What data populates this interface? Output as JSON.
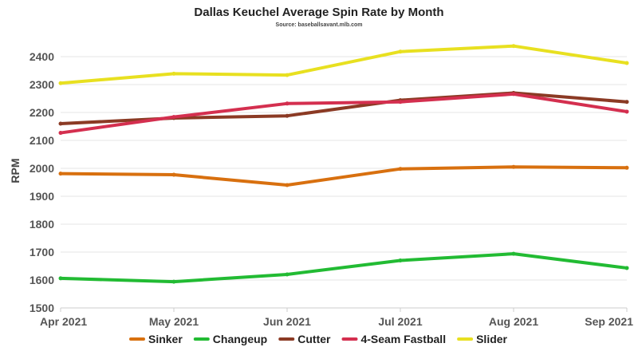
{
  "chart_data": {
    "type": "line",
    "title": "Dallas Keuchel Average Spin Rate by Month",
    "subtitle": "Source: baseballsavant.mlb.com",
    "xlabel": "",
    "ylabel": "RPM",
    "x": [
      "Apr 2021",
      "May 2021",
      "Jun 2021",
      "Jul 2021",
      "Aug 2021",
      "Sep 2021"
    ],
    "ylim": [
      1500,
      2400
    ],
    "yticks": [
      1500,
      1600,
      1700,
      1800,
      1900,
      2000,
      2100,
      2200,
      2300,
      2400
    ],
    "grid": true,
    "legend_position": "bottom",
    "series": [
      {
        "name": "Sinker",
        "color": "#d8700f",
        "values": [
          1981,
          1977,
          1940,
          1998,
          2005,
          2002
        ]
      },
      {
        "name": "Changeup",
        "color": "#22bb33",
        "values": [
          1606,
          1594,
          1620,
          1670,
          1694,
          1643
        ]
      },
      {
        "name": "Cutter",
        "color": "#8b3a24",
        "values": [
          2160,
          2180,
          2188,
          2244,
          2270,
          2238
        ]
      },
      {
        "name": "4-Seam Fastball",
        "color": "#d42f4f",
        "values": [
          2127,
          2184,
          2232,
          2238,
          2266,
          2203
        ]
      },
      {
        "name": "Slider",
        "color": "#e8e020",
        "values": [
          2305,
          2339,
          2334,
          2418,
          2438,
          2377
        ]
      }
    ]
  }
}
